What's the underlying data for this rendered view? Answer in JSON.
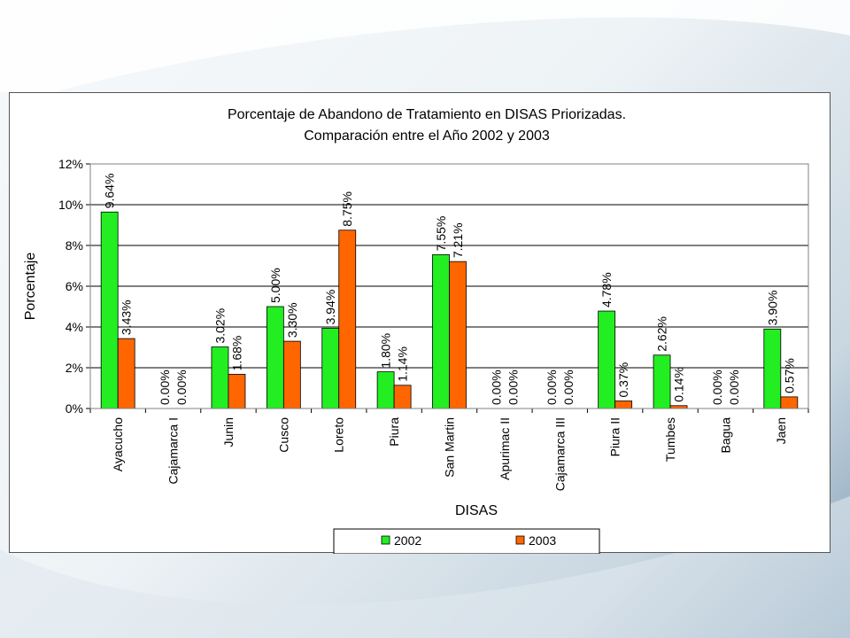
{
  "chart_data": {
    "type": "bar",
    "title": "Porcentaje de Abandono de Tratamiento en DISAS Priorizadas.",
    "subtitle": "Comparación entre el Año 2002 y 2003",
    "xlabel": "DISAS",
    "ylabel": "Porcentaje",
    "ylim": [
      0,
      12
    ],
    "yticks": [
      "0%",
      "2%",
      "4%",
      "6%",
      "8%",
      "10%",
      "12%"
    ],
    "grid": true,
    "legend_position": "bottom",
    "categories": [
      "Ayacucho",
      "Cajamarca I",
      "Junin",
      "Cusco",
      "Loreto",
      "Piura",
      "San Martin",
      "Apurimac II",
      "Cajamarca III",
      "Piura II",
      "Tumbes",
      "Bagua",
      "Jaen"
    ],
    "series": [
      {
        "name": "2002",
        "color": "#22ee22",
        "values": [
          9.64,
          0.0,
          3.02,
          5.0,
          3.94,
          1.8,
          7.55,
          0.0,
          0.0,
          4.78,
          2.62,
          0.0,
          3.9
        ],
        "labels": [
          "9.64%",
          "0.00%",
          "3.02%",
          "5.00%",
          "3.94%",
          "1.80%",
          "7.55%",
          "0.00%",
          "0.00%",
          "4.78%",
          "2.62%",
          "0.00%",
          "3.90%"
        ]
      },
      {
        "name": "2003",
        "color": "#ff6600",
        "values": [
          3.43,
          0.0,
          1.68,
          3.3,
          8.75,
          1.14,
          7.21,
          0.0,
          0.0,
          0.37,
          0.14,
          0.0,
          0.57
        ],
        "labels": [
          "3.43%",
          "0.00%",
          "1.68%",
          "3.30%",
          "8.75%",
          "1.14%",
          "7.21%",
          "0.00%",
          "0.00%",
          "0.37%",
          "0.14%",
          "0.00%",
          "0.57%"
        ]
      }
    ]
  }
}
